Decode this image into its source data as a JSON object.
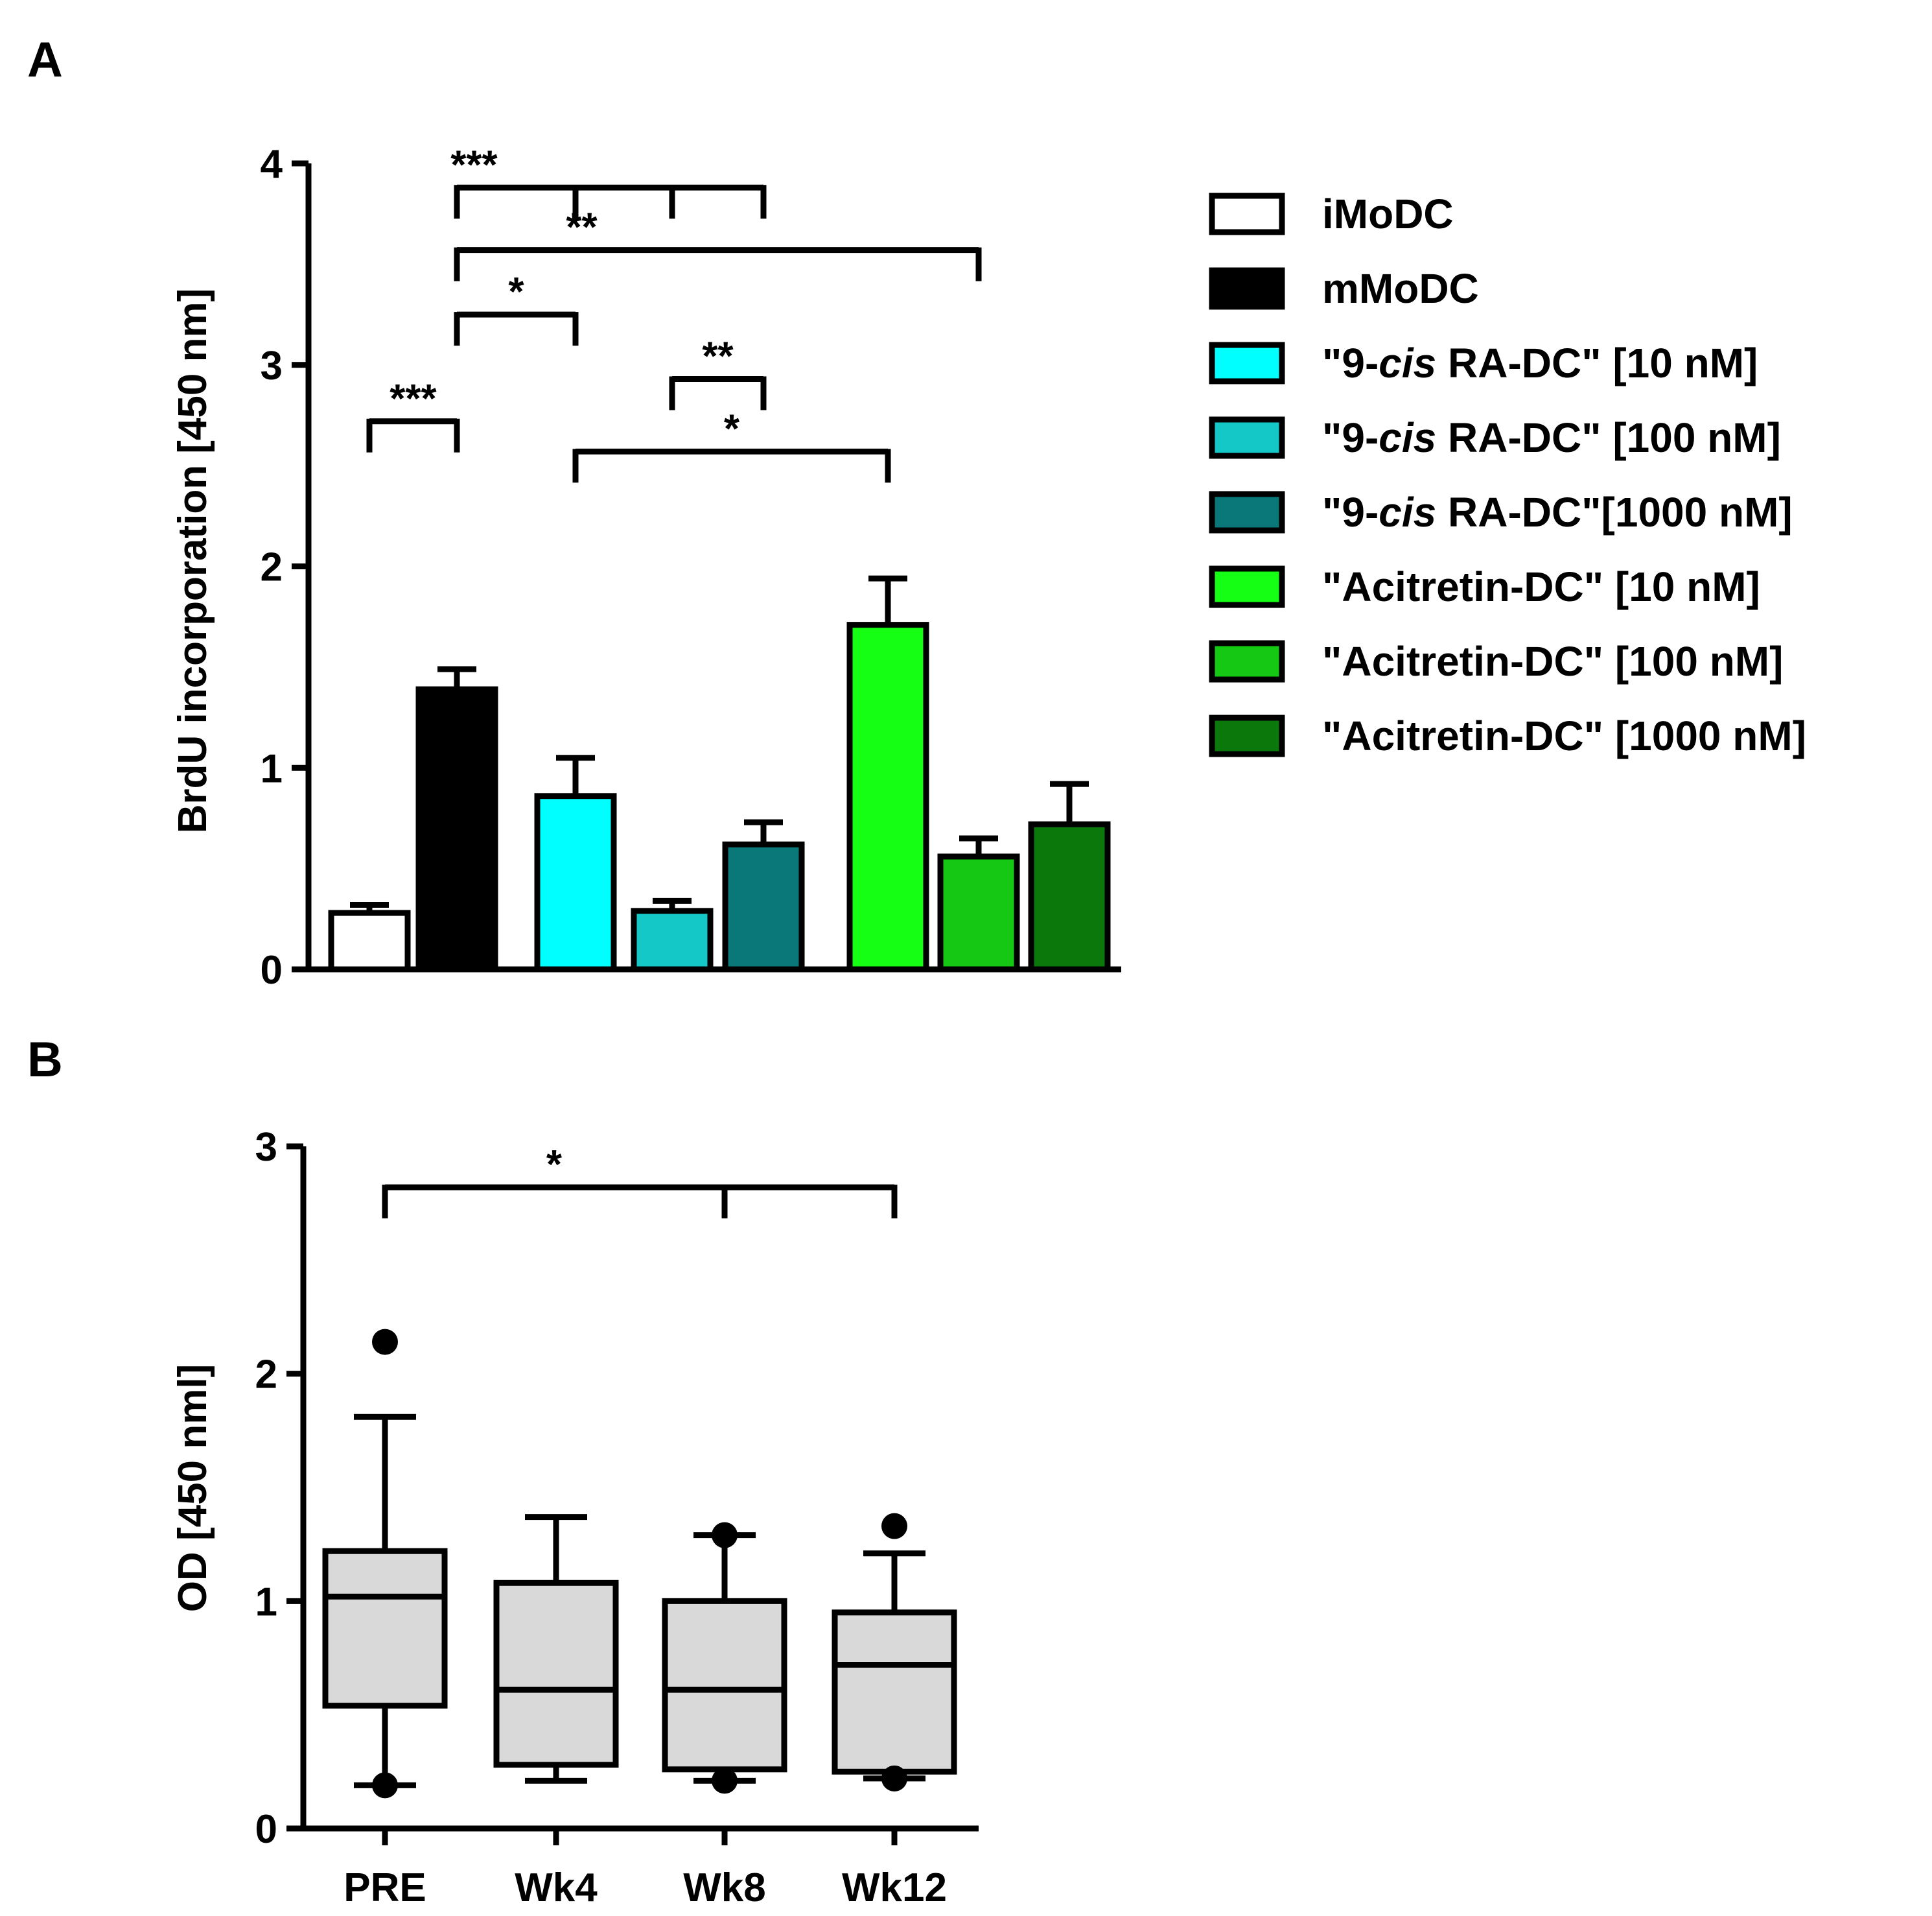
{
  "panels": {
    "a": {
      "letter": "A"
    },
    "b": {
      "letter": "B"
    }
  },
  "chart_data": [
    {
      "type": "bar",
      "panel": "A",
      "ylabel": "BrdU incorporation [450 nm]",
      "ylim": [
        0,
        4
      ],
      "yticks": [
        "0",
        "1",
        "2",
        "3",
        "4"
      ],
      "categories": [
        "iMoDC",
        "mMoDC",
        "9-cis RA-DC 10 nM",
        "9-cis RA-DC 100 nM",
        "9-cis RA-DC 1000 nM",
        "Acitretin-DC 10 nM",
        "Acitretin-DC 100 nM",
        "Acitretin-DC 1000 nM"
      ],
      "values": [
        0.28,
        1.39,
        0.86,
        0.29,
        0.62,
        1.71,
        0.56,
        0.72
      ],
      "errors": [
        0.04,
        0.1,
        0.19,
        0.05,
        0.11,
        0.23,
        0.09,
        0.2
      ],
      "colors": [
        "#ffffff",
        "#000000",
        "#00ffff",
        "#14c8c8",
        "#0a7878",
        "#14ff14",
        "#14c814",
        "#0a780a"
      ],
      "legend": {
        "position": "right",
        "items": [
          {
            "text": "iMoDC",
            "color": "#ffffff"
          },
          {
            "text": "mMoDC",
            "color": "#000000"
          },
          {
            "pre": "\"9-",
            "ital": "cis",
            "post": " RA-DC\" [10 nM]",
            "color": "#00ffff"
          },
          {
            "pre": "\"9-",
            "ital": "cis",
            "post": " RA-DC\" [100 nM]",
            "color": "#14c8c8"
          },
          {
            "pre": "\"9-",
            "ital": "cis",
            "post": " RA-DC\"[1000 nM]",
            "color": "#0a7878"
          },
          {
            "text": "\"Acitretin-DC\" [10 nM]",
            "color": "#14ff14"
          },
          {
            "text": "\"Acitretin-DC\" [100 nM]",
            "color": "#14c814"
          },
          {
            "text": "\"Acitretin-DC\" [1000 nM]",
            "color": "#0a780a"
          }
        ]
      },
      "significance": [
        {
          "label": "***",
          "y": 3.88,
          "from": 1,
          "to": 4,
          "drops": [
            1,
            2,
            3,
            4
          ]
        },
        {
          "label": "**",
          "y": 3.57,
          "from": 1,
          "to": 6,
          "drops": [
            1,
            6
          ]
        },
        {
          "label": "*",
          "y": 3.25,
          "from": 1,
          "to": 2,
          "drops": [
            1,
            2
          ]
        },
        {
          "label": "**",
          "y": 2.93,
          "from": 3,
          "to": 4,
          "drops": [
            3,
            4
          ]
        },
        {
          "label": "***",
          "y": 2.72,
          "from": 0,
          "to": 1,
          "drops": [
            0,
            1
          ]
        },
        {
          "label": "*",
          "y": 2.57,
          "from": 2,
          "to": 5,
          "drops": [
            2,
            5
          ]
        }
      ]
    },
    {
      "type": "box",
      "panel": "B",
      "ylabel": "OD [450 nml]",
      "ylim": [
        0,
        3
      ],
      "yticks": [
        "0",
        "1",
        "2",
        "3"
      ],
      "categories": [
        "PRE",
        "Wk4",
        "Wk8",
        "Wk12"
      ],
      "boxes": [
        {
          "whisker_low": 0.19,
          "q1": 0.54,
          "median": 1.02,
          "q3": 1.22,
          "whisker_high": 1.81,
          "outliers": [
            2.14,
            0.19
          ]
        },
        {
          "whisker_low": 0.21,
          "q1": 0.28,
          "median": 0.61,
          "q3": 1.08,
          "whisker_high": 1.37,
          "outliers": []
        },
        {
          "whisker_low": 0.21,
          "q1": 0.26,
          "median": 0.61,
          "q3": 1.0,
          "whisker_high": 1.29,
          "outliers": [
            1.29,
            0.21
          ]
        },
        {
          "whisker_low": 0.22,
          "q1": 0.25,
          "median": 0.72,
          "q3": 0.95,
          "whisker_high": 1.21,
          "outliers": [
            1.33,
            0.22
          ]
        }
      ],
      "box_color": "#d9d9d9",
      "significance": [
        {
          "label": "*",
          "y": 2.82,
          "from": 0,
          "to": 3,
          "drops": [
            0,
            2,
            3
          ]
        }
      ]
    }
  ]
}
